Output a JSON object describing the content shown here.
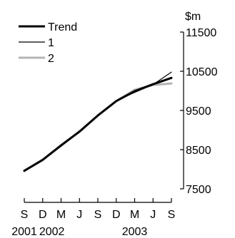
{
  "chart_data": {
    "type": "line",
    "unit": "$m",
    "x": [
      "S",
      "D",
      "M",
      "J",
      "S",
      "D",
      "M",
      "J",
      "S"
    ],
    "x_years": [
      {
        "label": "2001",
        "index": 0
      },
      {
        "label": "2002",
        "index": 1.5
      },
      {
        "label": "2003",
        "index": 6
      }
    ],
    "ylim": [
      7500,
      11500
    ],
    "yticks": [
      7500,
      8500,
      9500,
      10500,
      11500
    ],
    "y_axis_side": "right",
    "grid": false,
    "legend": "top-left",
    "series": [
      {
        "name": "Trend",
        "color": "#000000",
        "style": "thick",
        "values": [
          7960,
          8240,
          8610,
          8960,
          9370,
          9740,
          9990,
          10170,
          10330
        ]
      },
      {
        "name": "1",
        "color": "#000000",
        "style": "thin",
        "values": [
          7950,
          8240,
          8590,
          8960,
          9380,
          9750,
          9960,
          10160,
          10480
        ]
      },
      {
        "name": "2",
        "color": "#b4b4b4",
        "style": "thick",
        "values": [
          7960,
          8240,
          8600,
          8970,
          9370,
          9740,
          10030,
          10150,
          10190
        ]
      }
    ]
  }
}
